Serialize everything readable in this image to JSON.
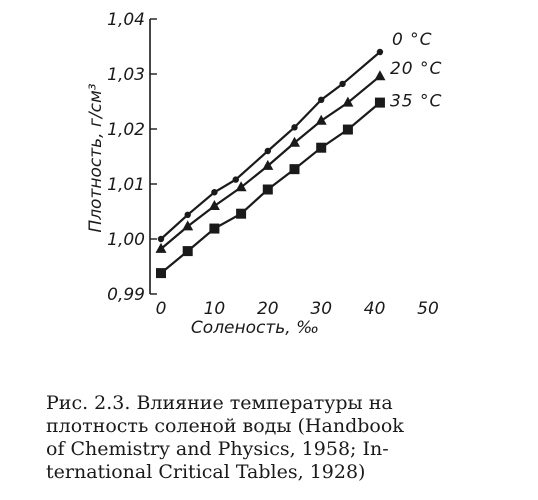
{
  "chart_data": {
    "type": "line",
    "x": [
      0,
      5,
      10,
      15,
      20,
      25,
      30,
      35,
      40
    ],
    "series": [
      {
        "name": "0 °C",
        "marker": "circle",
        "points": [
          [
            0,
            1.0
          ],
          [
            5,
            1.0044
          ],
          [
            10,
            1.0085
          ],
          [
            14,
            1.0108
          ],
          [
            20,
            1.016
          ],
          [
            25,
            1.0203
          ],
          [
            30,
            1.0253
          ],
          [
            34,
            1.0282
          ],
          [
            41,
            1.034
          ]
        ]
      },
      {
        "name": "20 °C",
        "marker": "triangle",
        "points": [
          [
            0,
            0.9982
          ],
          [
            5,
            1.0023
          ],
          [
            10,
            1.006
          ],
          [
            15,
            1.0094
          ],
          [
            20,
            1.0133
          ],
          [
            25,
            1.0175
          ],
          [
            30,
            1.0215
          ],
          [
            35,
            1.0248
          ],
          [
            41,
            1.0296
          ]
        ]
      },
      {
        "name": "35 °C",
        "marker": "square",
        "points": [
          [
            0,
            0.9938
          ],
          [
            5,
            0.9978
          ],
          [
            10,
            1.0019
          ],
          [
            15,
            1.0046
          ],
          [
            20,
            1.009
          ],
          [
            25,
            1.0127
          ],
          [
            30,
            1.0166
          ],
          [
            35,
            1.0199
          ],
          [
            41,
            1.0248
          ]
        ]
      }
    ],
    "xlabel": "Соленость, ‰",
    "ylabel": "Плотность, г/см³",
    "xlim": [
      0,
      50
    ],
    "ylim": [
      0.99,
      1.04
    ],
    "xticks": [
      0,
      10,
      20,
      30,
      40,
      50
    ],
    "yticks": [
      0.99,
      1.0,
      1.01,
      1.02,
      1.03,
      1.04
    ],
    "xtick_labels": [
      "0",
      "10",
      "20",
      "30",
      "40",
      "50"
    ],
    "ytick_labels": [
      "0,99",
      "1,00",
      "1,01",
      "1,02",
      "1,03",
      "1,04"
    ],
    "grid": false,
    "legend": "inline labels at right end of lines"
  },
  "caption": {
    "lines": [
      "Рис. 2.3.  Влияние  температуры на",
      "плотность соленой воды (Handbook",
      "of Chemistry and Physics, 1958; In-",
      "ternational Critical Tables, 1928)"
    ]
  }
}
